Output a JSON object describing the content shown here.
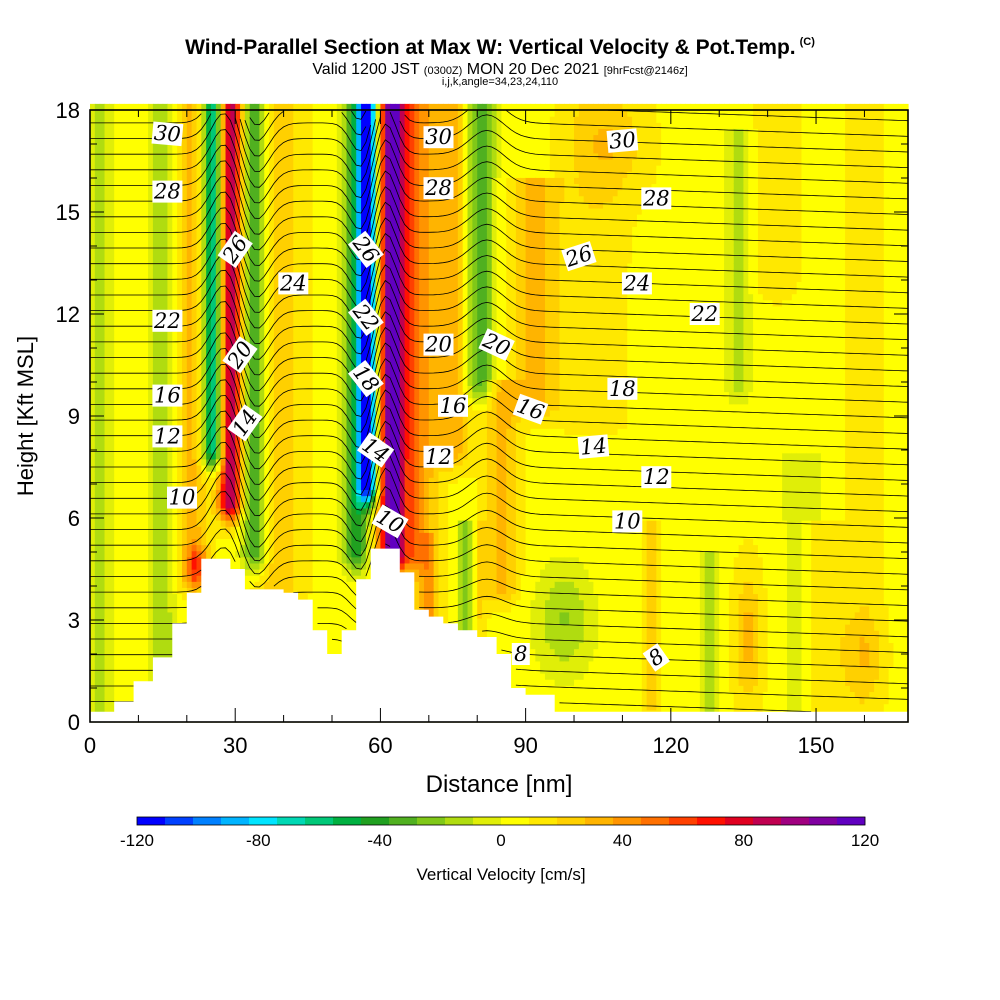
{
  "header": {
    "title": "Wind-Parallel Section at Max W: Vertical Velocity & Pot.Temp.",
    "copyright": "(C)",
    "valid_main": "Valid 1200 JST",
    "valid_utc": "(0300Z)",
    "valid_date": "MON 20 Dec 2021",
    "forecast": "[9hrFcst@2146z]",
    "indices": "i,j,k,angle=34,23,24,110"
  },
  "chart_data": {
    "type": "heatmap",
    "xlabel": "Distance [nm]",
    "ylabel": "Height [Kft MSL]",
    "xlim": [
      0,
      169
    ],
    "ylim": [
      0,
      18
    ],
    "x_ticks": [
      0,
      30,
      60,
      90,
      120,
      150
    ],
    "y_ticks": [
      0,
      3,
      6,
      9,
      12,
      15,
      18
    ],
    "colorbar": {
      "label": "Vertical Velocity [cm/s]",
      "range": [
        -120,
        120
      ],
      "ticks": [
        -120,
        -80,
        -40,
        0,
        40,
        80,
        120
      ],
      "colors": [
        "#0000ff",
        "#0040ff",
        "#0080ff",
        "#00b4ff",
        "#00e4ff",
        "#00d8b4",
        "#00c878",
        "#00b040",
        "#20a020",
        "#50b020",
        "#80c818",
        "#b0dc10",
        "#e0ee08",
        "#ffff00",
        "#ffe800",
        "#ffd000",
        "#ffb400",
        "#ff9400",
        "#ff7000",
        "#ff4000",
        "#ff1000",
        "#e00020",
        "#c00050",
        "#a00080",
        "#8000a0",
        "#6000c0"
      ]
    },
    "terrain_height_kft": [
      [
        0,
        0.3
      ],
      [
        5,
        0.6
      ],
      [
        9,
        1.2
      ],
      [
        13,
        1.9
      ],
      [
        17,
        2.9
      ],
      [
        20,
        3.8
      ],
      [
        23,
        4.8
      ],
      [
        26,
        4.8
      ],
      [
        29,
        4.5
      ],
      [
        32,
        3.9
      ],
      [
        35,
        3.9
      ],
      [
        40,
        3.8
      ],
      [
        43,
        3.6
      ],
      [
        46,
        2.7
      ],
      [
        49,
        2.0
      ],
      [
        52,
        2.7
      ],
      [
        55,
        4.2
      ],
      [
        58,
        5.1
      ],
      [
        61,
        5.1
      ],
      [
        64,
        4.4
      ],
      [
        67,
        3.3
      ],
      [
        70,
        3.1
      ],
      [
        73,
        2.9
      ],
      [
        76,
        2.7
      ],
      [
        80,
        2.5
      ],
      [
        84,
        2.0
      ],
      [
        87,
        1.0
      ],
      [
        90,
        0.8
      ],
      [
        96,
        0.3
      ],
      [
        169,
        0.3
      ]
    ],
    "theta_contour_labels": [
      "8",
      "10",
      "12",
      "14",
      "16",
      "18",
      "20",
      "22",
      "24",
      "26",
      "28",
      "30"
    ],
    "contour_label_placements": [
      {
        "text": "30",
        "x": 16,
        "y": 17.3,
        "angle": 5
      },
      {
        "text": "28",
        "x": 16,
        "y": 15.6,
        "angle": 0
      },
      {
        "text": "22",
        "x": 16,
        "y": 11.8,
        "angle": 0
      },
      {
        "text": "16",
        "x": 16,
        "y": 9.6,
        "angle": 0
      },
      {
        "text": "12",
        "x": 16,
        "y": 8.4,
        "angle": 0
      },
      {
        "text": "10",
        "x": 19,
        "y": 6.6,
        "angle": 0
      },
      {
        "text": "26",
        "x": 30,
        "y": 13.9,
        "angle": -55
      },
      {
        "text": "20",
        "x": 31,
        "y": 10.8,
        "angle": -55
      },
      {
        "text": "14",
        "x": 32,
        "y": 8.8,
        "angle": -55
      },
      {
        "text": "24",
        "x": 42,
        "y": 12.9,
        "angle": 0
      },
      {
        "text": "26",
        "x": 57,
        "y": 13.9,
        "angle": 52
      },
      {
        "text": "22",
        "x": 57,
        "y": 11.9,
        "angle": 52
      },
      {
        "text": "18",
        "x": 57,
        "y": 10.1,
        "angle": 52
      },
      {
        "text": "14",
        "x": 59,
        "y": 8.0,
        "angle": 35
      },
      {
        "text": "10",
        "x": 62,
        "y": 5.9,
        "angle": 30
      },
      {
        "text": "30",
        "x": 72,
        "y": 17.2,
        "angle": 0
      },
      {
        "text": "28",
        "x": 72,
        "y": 15.7,
        "angle": 0
      },
      {
        "text": "20",
        "x": 72,
        "y": 11.1,
        "angle": 0
      },
      {
        "text": "16",
        "x": 75,
        "y": 9.3,
        "angle": 0
      },
      {
        "text": "12",
        "x": 72,
        "y": 7.8,
        "angle": 0
      },
      {
        "text": "20",
        "x": 84,
        "y": 11.1,
        "angle": 25
      },
      {
        "text": "16",
        "x": 91,
        "y": 9.2,
        "angle": 20
      },
      {
        "text": "8",
        "x": 89,
        "y": 2.0,
        "angle": 0
      },
      {
        "text": "26",
        "x": 101,
        "y": 13.7,
        "angle": -18
      },
      {
        "text": "14",
        "x": 104,
        "y": 8.1,
        "angle": -5
      },
      {
        "text": "10",
        "x": 111,
        "y": 5.9,
        "angle": 0
      },
      {
        "text": "30",
        "x": 110,
        "y": 17.1,
        "angle": -5
      },
      {
        "text": "8",
        "x": 117,
        "y": 1.9,
        "angle": -35
      },
      {
        "text": "18",
        "x": 110,
        "y": 9.8,
        "angle": 0
      },
      {
        "text": "24",
        "x": 113,
        "y": 12.9,
        "angle": 0
      },
      {
        "text": "12",
        "x": 117,
        "y": 7.2,
        "angle": 0
      },
      {
        "text": "28",
        "x": 117,
        "y": 15.4,
        "angle": 0
      },
      {
        "text": "22",
        "x": 127,
        "y": 12.0,
        "angle": 0
      }
    ],
    "velocity_bands_cm_s": [
      {
        "x": 29,
        "width": 2.4,
        "w": 90,
        "z1": 6.5,
        "z2": 18.5
      },
      {
        "x": 25.5,
        "width": 2.2,
        "w": -80,
        "z1": 8,
        "z2": 18.5
      },
      {
        "x": 21,
        "width": 3.5,
        "w": 25,
        "z1": 4.3,
        "z2": 18.5
      },
      {
        "x": 34,
        "width": 2.6,
        "w": -45,
        "z1": 5,
        "z2": 18.5
      },
      {
        "x": 15,
        "width": 3,
        "w": -20,
        "z1": 0.4,
        "z2": 18.5
      },
      {
        "x": 39,
        "width": 5,
        "w": 20,
        "z1": 4,
        "z2": 18.5
      },
      {
        "x": 2,
        "width": 2.5,
        "w": -20,
        "z1": 0.3,
        "z2": 18.5
      },
      {
        "x": 57.5,
        "width": 2,
        "w": -120,
        "z1": 7,
        "z2": 18.5
      },
      {
        "x": 55,
        "width": 2.5,
        "w": -50,
        "z1": 5,
        "z2": 18.5
      },
      {
        "x": 62.5,
        "width": 2.2,
        "w": 110,
        "z1": 5,
        "z2": 18.5
      },
      {
        "x": 60,
        "width": 2,
        "w": 20,
        "z1": 5,
        "z2": 18.5
      },
      {
        "x": 66,
        "width": 3,
        "w": 35,
        "z1": 5,
        "z2": 18.5
      },
      {
        "x": 69,
        "width": 3.5,
        "w": 20,
        "z1": 3,
        "z2": 18.5
      },
      {
        "x": 80.5,
        "width": 3,
        "w": -45,
        "z1": 10,
        "z2": 18.5
      },
      {
        "x": 75,
        "width": 4,
        "w": 25,
        "z1": 8,
        "z2": 18.5
      },
      {
        "x": 85,
        "width": 3.5,
        "w": 25,
        "z1": 4,
        "z2": 10
      },
      {
        "x": 92,
        "width": 5,
        "w": 25,
        "z1": 9.5,
        "z2": 16
      },
      {
        "x": 104,
        "width": 7,
        "w": 10,
        "z1": 9,
        "z2": 18.5
      },
      {
        "x": 134,
        "width": 2.5,
        "w": -20,
        "z1": 10,
        "z2": 17.5
      },
      {
        "x": 78,
        "width": 2,
        "w": -30,
        "z1": 2.5,
        "z2": 6
      },
      {
        "x": 70,
        "width": 1.5,
        "w": 18,
        "z1": 1,
        "z2": 5.5
      },
      {
        "x": 80,
        "width": 1.6,
        "w": 20,
        "z1": 1,
        "z2": 6
      },
      {
        "x": 116,
        "width": 2,
        "w": 15,
        "z1": 0.5,
        "z2": 6
      },
      {
        "x": 128,
        "width": 2,
        "w": -20,
        "z1": 0.5,
        "z2": 5
      },
      {
        "x": 147,
        "width": 4,
        "w": -15,
        "z1": 0.3,
        "z2": 8
      },
      {
        "x": 151,
        "width": 5,
        "w": 15,
        "z1": 0.3,
        "z2": 6
      },
      {
        "x": 160,
        "width": 4,
        "w": 8,
        "z1": 0.3,
        "z2": 18.5
      },
      {
        "x": 142,
        "width": 4,
        "w": 12,
        "z1": 13,
        "z2": 18.5
      }
    ],
    "velocity_blobs_cm_s": [
      {
        "x": 98,
        "z": 3,
        "rx": 6,
        "rz": 1.6,
        "w": -25
      },
      {
        "x": 136,
        "z": 2.5,
        "rx": 3,
        "rz": 2,
        "w": 25
      },
      {
        "x": 160,
        "z": 2,
        "rx": 4,
        "rz": 1.2,
        "w": 15
      },
      {
        "x": 108,
        "z": 17,
        "rx": 8,
        "rz": 1.5,
        "w": 15
      },
      {
        "x": 22,
        "z": 4.6,
        "rx": 2,
        "rz": 0.6,
        "w": 40
      }
    ]
  }
}
